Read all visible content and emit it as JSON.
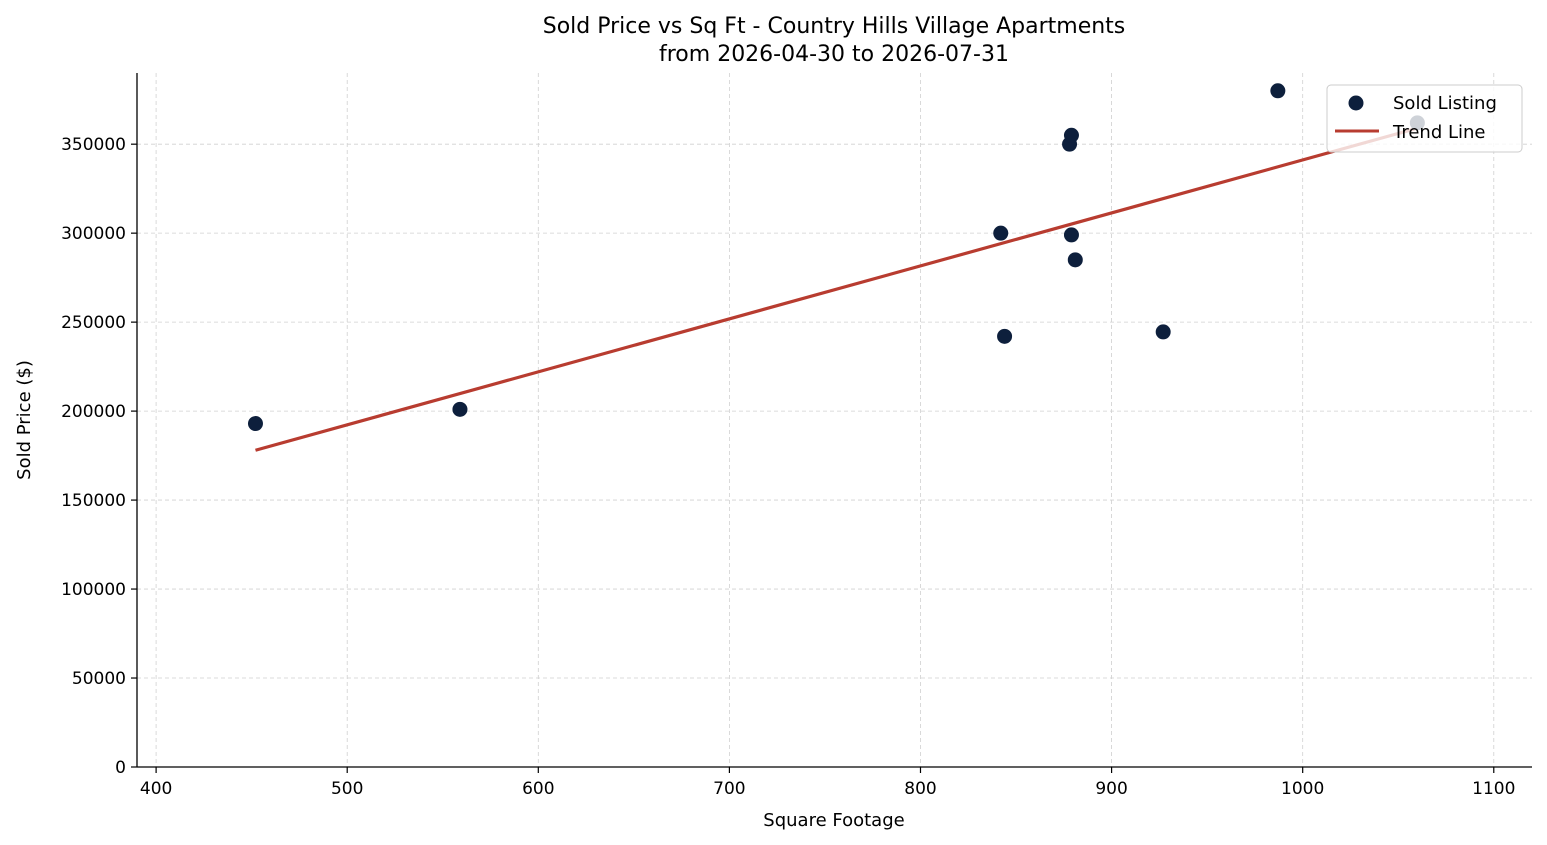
{
  "chart_data": {
    "type": "scatter",
    "title": "Sold Price vs Sq Ft - Country Hills Village Apartments",
    "subtitle": "from 2026-04-30 to 2026-07-31",
    "xlabel": "Square Footage",
    "ylabel": "Sold Price ($)",
    "xlim": [
      390,
      1120
    ],
    "ylim": [
      0,
      390000
    ],
    "x_ticks": [
      400,
      500,
      600,
      700,
      800,
      900,
      1000,
      1100
    ],
    "y_ticks": [
      0,
      50000,
      100000,
      150000,
      200000,
      250000,
      300000,
      350000
    ],
    "grid": true,
    "legend_position": "top-right",
    "series": [
      {
        "name": "Sold Listing",
        "type": "scatter",
        "color": "#0d1f3c",
        "points": [
          {
            "x": 452,
            "y": 193000
          },
          {
            "x": 559,
            "y": 201000
          },
          {
            "x": 842,
            "y": 300000
          },
          {
            "x": 844,
            "y": 242000
          },
          {
            "x": 878,
            "y": 350000
          },
          {
            "x": 879,
            "y": 355000
          },
          {
            "x": 879,
            "y": 299000
          },
          {
            "x": 881,
            "y": 285000
          },
          {
            "x": 927,
            "y": 244500
          },
          {
            "x": 987,
            "y": 380000
          },
          {
            "x": 1060,
            "y": 362000
          }
        ]
      },
      {
        "name": "Trend Line",
        "type": "line",
        "color": "#b83c30",
        "points": [
          {
            "x": 452,
            "y": 178000
          },
          {
            "x": 1060,
            "y": 359000
          }
        ]
      }
    ]
  }
}
